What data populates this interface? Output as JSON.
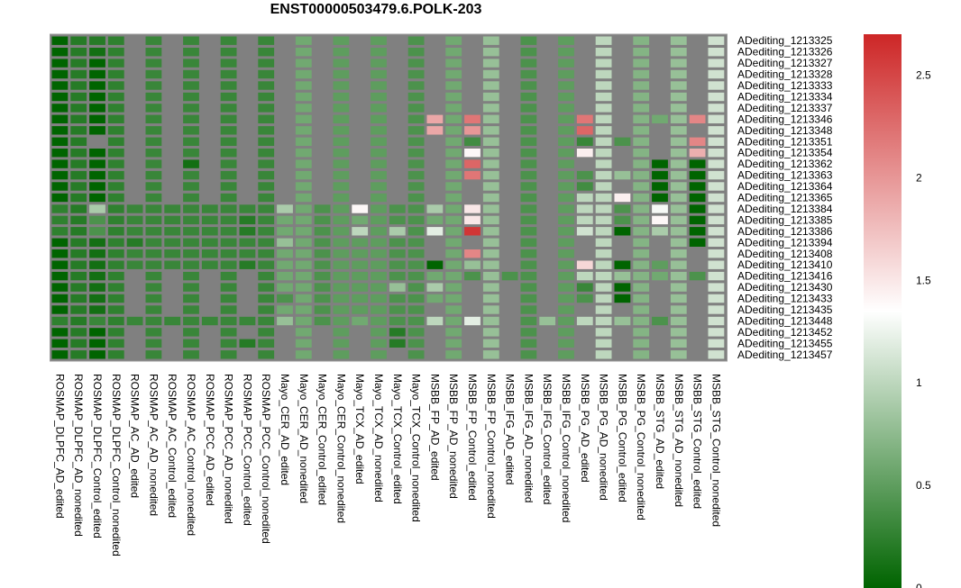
{
  "chart_data": {
    "type": "heatmap",
    "title": "ENST00000503479.6.POLK-203",
    "rows": [
      "ADediting_1213325",
      "ADediting_1213326",
      "ADediting_1213327",
      "ADediting_1213328",
      "ADediting_1213333",
      "ADediting_1213334",
      "ADediting_1213337",
      "ADediting_1213346",
      "ADediting_1213348",
      "ADediting_1213351",
      "ADediting_1213354",
      "ADediting_1213362",
      "ADediting_1213363",
      "ADediting_1213364",
      "ADediting_1213365",
      "ADediting_1213384",
      "ADediting_1213385",
      "ADediting_1213386",
      "ADediting_1213394",
      "ADediting_1213408",
      "ADediting_1213410",
      "ADediting_1213416",
      "ADediting_1213430",
      "ADediting_1213433",
      "ADediting_1213435",
      "ADediting_1213448",
      "ADediting_1213452",
      "ADediting_1213455",
      "ADediting_1213457"
    ],
    "columns": [
      "ROSMAP_DLPFC_AD_edited",
      "ROSMAP_DLPFC_AD_nonedited",
      "ROSMAP_DLPFC_Control_edited",
      "ROSMAP_DLPFC_Control_nonedited",
      "ROSMAP_AC_AD_edited",
      "ROSMAP_AC_AD_nonedited",
      "ROSMAP_AC_Control_edited",
      "ROSMAP_AC_Control_nonedited",
      "ROSMAP_PCC_AD_edited",
      "ROSMAP_PCC_AD_nonedited",
      "ROSMAP_PCC_Control_edited",
      "ROSMAP_PCC_Control_nonedited",
      "Mayo_CER_AD_edited",
      "Mayo_CER_AD_nonedited",
      "Mayo_CER_Control_edited",
      "Mayo_CER_Control_nonedited",
      "Mayo_TCX_AD_edited",
      "Mayo_TCX_AD_nonedited",
      "Mayo_TCX_Control_edited",
      "Mayo_TCX_Control_nonedited",
      "MSBB_FP_AD_edited",
      "MSBB_FP_AD_nonedited",
      "MSBB_FP_Control_edited",
      "MSBB_FP_Control_nonedited",
      "MSBB_IFG_AD_edited",
      "MSBB_IFG_AD_nonedited",
      "MSBB_IFG_Control_edited",
      "MSBB_IFG_Control_nonedited",
      "MSBB_PG_AD_edited",
      "MSBB_PG_AD_nonedited",
      "MSBB_PG_Control_edited",
      "MSBB_PG_Control_nonedited",
      "MSBB_STG_AD_edited",
      "MSBB_STG_AD_nonedited",
      "MSBB_STG_Control_edited",
      "MSBB_STG_Control_nonedited"
    ],
    "values": [
      [
        0.0,
        0.2,
        0.2,
        0.25,
        null,
        0.3,
        null,
        0.3,
        null,
        0.3,
        null,
        0.3,
        null,
        0.6,
        null,
        0.5,
        null,
        0.5,
        null,
        0.4,
        null,
        0.6,
        null,
        0.8,
        null,
        0.4,
        null,
        0.5,
        null,
        1.0,
        null,
        0.7,
        null,
        0.8,
        null,
        1.1
      ],
      [
        0.0,
        0.2,
        0.1,
        0.25,
        null,
        0.3,
        null,
        0.3,
        null,
        0.3,
        null,
        0.3,
        null,
        0.6,
        null,
        0.5,
        null,
        0.5,
        null,
        0.4,
        null,
        0.6,
        null,
        0.8,
        null,
        0.4,
        null,
        0.5,
        null,
        1.0,
        null,
        0.7,
        null,
        0.8,
        null,
        1.1
      ],
      [
        0.0,
        0.2,
        0.0,
        0.25,
        null,
        0.3,
        null,
        0.3,
        null,
        0.3,
        null,
        0.3,
        null,
        0.6,
        null,
        0.5,
        null,
        0.5,
        null,
        0.4,
        null,
        0.6,
        null,
        0.8,
        null,
        0.4,
        null,
        0.5,
        null,
        1.0,
        null,
        0.7,
        null,
        0.8,
        null,
        1.1
      ],
      [
        0.0,
        0.2,
        0.0,
        0.25,
        null,
        0.3,
        null,
        0.3,
        null,
        0.3,
        null,
        0.3,
        null,
        0.6,
        null,
        0.5,
        null,
        0.5,
        null,
        0.4,
        null,
        0.6,
        null,
        0.8,
        null,
        0.4,
        null,
        0.5,
        null,
        1.0,
        null,
        0.7,
        null,
        0.8,
        null,
        1.1
      ],
      [
        0.0,
        0.2,
        0.0,
        0.25,
        null,
        0.3,
        null,
        0.3,
        null,
        0.3,
        null,
        0.3,
        null,
        0.6,
        null,
        0.5,
        null,
        0.5,
        null,
        0.4,
        null,
        0.6,
        null,
        0.8,
        null,
        0.4,
        null,
        0.5,
        null,
        1.0,
        null,
        0.7,
        null,
        0.8,
        null,
        1.1
      ],
      [
        0.0,
        0.2,
        0.0,
        0.25,
        null,
        0.3,
        null,
        0.3,
        null,
        0.3,
        null,
        0.3,
        null,
        0.6,
        null,
        0.5,
        null,
        0.5,
        null,
        0.4,
        null,
        0.6,
        null,
        0.8,
        null,
        0.4,
        null,
        0.5,
        null,
        1.0,
        null,
        0.7,
        null,
        0.8,
        null,
        1.1
      ],
      [
        0.0,
        0.2,
        0.0,
        0.25,
        null,
        0.3,
        null,
        0.3,
        null,
        0.3,
        null,
        0.3,
        null,
        0.6,
        null,
        0.5,
        null,
        0.5,
        null,
        0.4,
        null,
        0.6,
        null,
        0.8,
        null,
        0.4,
        null,
        0.5,
        null,
        1.0,
        null,
        0.7,
        null,
        0.8,
        null,
        1.1
      ],
      [
        0.0,
        0.2,
        0.0,
        0.25,
        null,
        0.3,
        null,
        0.3,
        null,
        0.3,
        null,
        0.3,
        null,
        0.6,
        null,
        0.5,
        null,
        0.5,
        null,
        0.4,
        1.9,
        0.6,
        2.2,
        0.8,
        null,
        0.4,
        null,
        0.5,
        2.2,
        1.0,
        null,
        0.7,
        0.6,
        0.8,
        2.1,
        1.1
      ],
      [
        0.0,
        0.2,
        0.0,
        0.25,
        null,
        0.3,
        null,
        0.3,
        null,
        0.3,
        null,
        0.3,
        null,
        0.6,
        null,
        0.5,
        null,
        0.5,
        null,
        0.4,
        1.9,
        0.6,
        2.0,
        0.8,
        null,
        0.4,
        null,
        0.5,
        2.3,
        1.0,
        null,
        0.7,
        null,
        0.8,
        null,
        1.1
      ],
      [
        0.0,
        0.2,
        null,
        0.25,
        null,
        0.3,
        null,
        0.3,
        null,
        0.3,
        null,
        0.3,
        null,
        0.6,
        null,
        0.5,
        null,
        0.5,
        null,
        0.4,
        null,
        0.6,
        0.35,
        0.8,
        null,
        0.4,
        null,
        0.5,
        0.3,
        1.0,
        0.4,
        0.7,
        null,
        0.8,
        2.1,
        1.1
      ],
      [
        0.0,
        0.2,
        0.0,
        0.25,
        null,
        0.3,
        null,
        0.3,
        null,
        0.3,
        null,
        0.3,
        null,
        0.6,
        null,
        0.5,
        null,
        0.5,
        null,
        0.4,
        null,
        0.6,
        1.4,
        0.8,
        null,
        0.4,
        null,
        0.5,
        1.45,
        1.0,
        null,
        0.7,
        null,
        0.8,
        1.85,
        1.1
      ],
      [
        0.0,
        0.2,
        0.0,
        0.25,
        null,
        0.3,
        null,
        0.1,
        null,
        0.3,
        null,
        0.3,
        null,
        0.6,
        null,
        0.5,
        null,
        0.5,
        null,
        0.4,
        null,
        0.6,
        2.3,
        0.8,
        null,
        0.4,
        null,
        0.5,
        null,
        1.0,
        null,
        0.7,
        0.0,
        0.8,
        0.0,
        1.1
      ],
      [
        0.0,
        0.2,
        0.0,
        0.25,
        null,
        0.3,
        null,
        0.3,
        null,
        0.3,
        null,
        0.3,
        null,
        0.6,
        null,
        0.5,
        null,
        0.5,
        null,
        0.4,
        null,
        0.6,
        2.2,
        0.8,
        null,
        0.4,
        null,
        0.5,
        0.4,
        1.0,
        0.8,
        0.7,
        0.0,
        0.8,
        0.0,
        1.1
      ],
      [
        0.0,
        0.2,
        0.0,
        0.25,
        null,
        0.3,
        null,
        0.3,
        null,
        0.3,
        null,
        0.3,
        null,
        0.6,
        null,
        0.5,
        null,
        0.5,
        null,
        0.4,
        null,
        0.6,
        null,
        0.8,
        null,
        0.4,
        null,
        0.5,
        0.35,
        1.0,
        null,
        0.7,
        0.0,
        0.8,
        0.0,
        1.1
      ],
      [
        0.0,
        0.2,
        0.0,
        0.25,
        null,
        0.3,
        null,
        0.3,
        null,
        0.3,
        null,
        0.3,
        null,
        0.6,
        null,
        0.5,
        null,
        0.5,
        null,
        0.4,
        null,
        0.6,
        null,
        0.8,
        null,
        0.4,
        null,
        0.5,
        1.0,
        1.0,
        1.45,
        0.7,
        0.0,
        0.8,
        0.0,
        1.1
      ],
      [
        0.25,
        0.2,
        0.9,
        0.25,
        0.3,
        0.3,
        0.3,
        0.3,
        0.3,
        0.3,
        0.3,
        0.3,
        0.9,
        0.6,
        0.4,
        0.5,
        1.4,
        0.5,
        0.4,
        0.4,
        0.9,
        0.6,
        1.5,
        0.8,
        null,
        0.4,
        null,
        0.5,
        1.0,
        1.0,
        0.4,
        0.7,
        1.3,
        0.8,
        0.0,
        1.1
      ],
      [
        0.25,
        0.2,
        0.4,
        0.25,
        0.3,
        0.3,
        0.3,
        0.3,
        0.3,
        0.3,
        0.2,
        0.3,
        0.6,
        0.6,
        0.4,
        0.5,
        0.6,
        0.5,
        0.4,
        0.4,
        0.6,
        0.6,
        1.5,
        0.8,
        null,
        0.4,
        null,
        0.5,
        1.0,
        1.0,
        0.4,
        0.7,
        1.4,
        0.8,
        0.0,
        1.1
      ],
      [
        0.25,
        0.2,
        0.4,
        0.25,
        0.3,
        0.3,
        0.3,
        0.3,
        0.3,
        0.3,
        0.2,
        0.3,
        0.6,
        0.6,
        0.4,
        0.5,
        1.0,
        0.5,
        0.9,
        0.4,
        1.2,
        0.6,
        2.6,
        0.8,
        null,
        0.4,
        null,
        0.5,
        1.1,
        1.0,
        0.0,
        0.7,
        0.9,
        0.8,
        0.0,
        1.1
      ],
      [
        0.0,
        0.2,
        0.1,
        0.25,
        0.2,
        0.3,
        0.3,
        0.3,
        0.3,
        0.3,
        0.3,
        0.3,
        0.8,
        0.6,
        0.4,
        0.5,
        0.5,
        0.5,
        0.4,
        0.4,
        null,
        0.6,
        null,
        0.8,
        null,
        0.4,
        null,
        0.5,
        null,
        1.0,
        null,
        0.7,
        null,
        0.8,
        0.0,
        1.1
      ],
      [
        0.0,
        0.2,
        0.1,
        0.25,
        0.3,
        0.3,
        0.3,
        0.3,
        0.3,
        0.3,
        0.3,
        0.3,
        0.6,
        0.6,
        0.4,
        0.5,
        0.5,
        0.5,
        0.4,
        0.4,
        null,
        0.6,
        2.1,
        0.8,
        null,
        0.4,
        null,
        0.5,
        null,
        1.0,
        null,
        0.7,
        null,
        0.8,
        null,
        1.1
      ],
      [
        0.0,
        0.2,
        0.1,
        0.25,
        0.3,
        0.3,
        0.3,
        0.3,
        0.3,
        0.3,
        0.2,
        0.3,
        0.6,
        0.6,
        0.4,
        0.5,
        0.5,
        0.5,
        0.4,
        0.4,
        0.0,
        0.6,
        0.8,
        0.8,
        null,
        0.4,
        null,
        0.5,
        1.6,
        1.0,
        0.0,
        0.7,
        0.5,
        0.8,
        null,
        1.1
      ],
      [
        0.0,
        0.2,
        0.1,
        0.25,
        null,
        0.3,
        null,
        0.3,
        null,
        0.3,
        null,
        0.3,
        0.6,
        0.6,
        0.4,
        0.5,
        0.5,
        0.5,
        0.4,
        0.4,
        0.6,
        0.6,
        0.4,
        0.8,
        0.4,
        0.4,
        null,
        0.5,
        1.0,
        1.0,
        0.8,
        0.7,
        0.6,
        0.8,
        0.4,
        1.1
      ],
      [
        0.0,
        0.2,
        0.1,
        0.25,
        null,
        0.3,
        null,
        0.3,
        null,
        0.3,
        null,
        0.3,
        0.6,
        0.6,
        0.4,
        0.5,
        0.5,
        0.5,
        0.8,
        0.4,
        0.9,
        0.6,
        null,
        0.8,
        null,
        0.4,
        null,
        0.5,
        0.3,
        1.0,
        0.0,
        0.7,
        null,
        0.8,
        null,
        1.1
      ],
      [
        0.0,
        0.2,
        0.1,
        0.25,
        null,
        0.3,
        null,
        0.3,
        null,
        0.3,
        null,
        0.3,
        0.4,
        0.6,
        0.4,
        0.5,
        0.5,
        0.5,
        0.4,
        0.4,
        0.6,
        0.6,
        null,
        0.8,
        null,
        0.4,
        null,
        0.5,
        0.4,
        1.0,
        0.0,
        0.7,
        null,
        0.8,
        null,
        1.1
      ],
      [
        0.0,
        0.2,
        0.1,
        0.25,
        null,
        0.3,
        null,
        0.3,
        null,
        0.3,
        null,
        0.3,
        0.6,
        0.6,
        0.4,
        0.5,
        0.5,
        0.5,
        0.4,
        0.4,
        null,
        0.6,
        null,
        0.8,
        null,
        0.4,
        null,
        0.5,
        null,
        1.0,
        null,
        0.7,
        null,
        0.8,
        null,
        1.1
      ],
      [
        0.25,
        0.2,
        0.3,
        0.25,
        0.3,
        0.3,
        0.3,
        0.3,
        0.3,
        0.3,
        0.3,
        0.3,
        0.8,
        0.6,
        0.4,
        0.5,
        0.6,
        0.5,
        0.4,
        0.4,
        1.0,
        0.6,
        1.2,
        0.8,
        null,
        0.4,
        0.8,
        0.5,
        1.0,
        1.0,
        0.8,
        0.7,
        0.4,
        0.8,
        null,
        1.1
      ],
      [
        0.0,
        0.2,
        0.0,
        0.25,
        null,
        0.3,
        null,
        0.3,
        null,
        0.3,
        null,
        0.3,
        null,
        0.6,
        null,
        0.5,
        null,
        0.5,
        0.2,
        0.4,
        null,
        0.6,
        null,
        0.8,
        null,
        0.4,
        null,
        0.5,
        null,
        1.0,
        null,
        0.7,
        null,
        0.8,
        null,
        1.1
      ],
      [
        0.0,
        0.2,
        0.0,
        0.25,
        null,
        0.3,
        null,
        0.3,
        null,
        0.3,
        0.2,
        0.3,
        null,
        0.6,
        null,
        0.5,
        null,
        0.5,
        0.2,
        0.4,
        null,
        0.6,
        null,
        0.8,
        null,
        0.4,
        null,
        0.5,
        null,
        1.0,
        null,
        0.7,
        null,
        0.8,
        null,
        1.1
      ],
      [
        0.0,
        0.2,
        0.0,
        0.25,
        null,
        0.3,
        null,
        0.3,
        null,
        0.3,
        null,
        0.3,
        null,
        0.6,
        null,
        0.5,
        null,
        0.5,
        null,
        0.4,
        null,
        0.6,
        null,
        0.8,
        null,
        0.4,
        null,
        0.5,
        null,
        1.0,
        null,
        0.7,
        null,
        0.8,
        null,
        1.1
      ]
    ],
    "missing_color": "#808080",
    "color_scale": {
      "range": [
        0,
        2.7
      ],
      "midpoint": 1.35,
      "low_color": "#006400",
      "mid_color": "#ffffff",
      "high_color": "#cd2626"
    },
    "legend_ticks": [
      0,
      0.5,
      1,
      1.5,
      2,
      2.5
    ],
    "legend_tick_labels": [
      "0",
      "0.5",
      "1",
      "1.5",
      "2",
      "2.5"
    ]
  }
}
